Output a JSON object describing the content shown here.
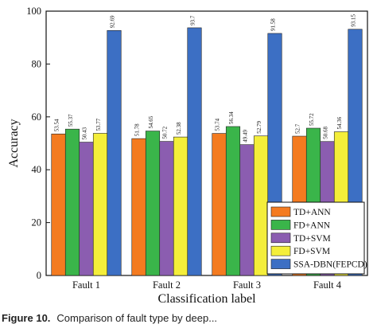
{
  "chart_data": {
    "type": "bar",
    "title": "",
    "xlabel": "Classification label",
    "ylabel": "Accuracy",
    "ylim": [
      0,
      100
    ],
    "yticks": [
      0,
      20,
      40,
      60,
      80,
      100
    ],
    "categories": [
      "Fault 1",
      "Fault 2",
      "Fault 3",
      "Fault 4"
    ],
    "series": [
      {
        "name": "TD+ANN",
        "color": "#f47b20",
        "values": [
          53.54,
          51.78,
          53.74,
          52.7
        ],
        "labels": [
          "53.54",
          "51.78",
          "53.74",
          "52.7"
        ]
      },
      {
        "name": "FD+ANN",
        "color": "#3ab54a",
        "values": [
          55.37,
          54.65,
          56.34,
          55.72
        ],
        "labels": [
          "55.37",
          "54.65",
          "56.34",
          "55.72"
        ]
      },
      {
        "name": "TD+SVM",
        "color": "#8b5db0",
        "values": [
          50.43,
          50.72,
          49.49,
          50.68
        ],
        "labels": [
          "50.43",
          "50.72",
          "49.49",
          "50.68"
        ]
      },
      {
        "name": "FD+SVM",
        "color": "#f4ee3a",
        "values": [
          53.77,
          52.38,
          52.79,
          54.36
        ],
        "labels": [
          "53.77",
          "52.38",
          "52.79",
          "54.36"
        ]
      },
      {
        "name": "SSA-DBN(FEPCD)",
        "color": "#3c6fc4",
        "values": [
          92.69,
          93.7,
          91.58,
          93.15
        ],
        "labels": [
          "92.69",
          "93.7",
          "91.58",
          "93.15"
        ]
      }
    ],
    "legend_position": "bottom-right",
    "grid": false
  },
  "caption": {
    "label": "Figure 10.",
    "text": "Comparison of fault type by deep..."
  }
}
